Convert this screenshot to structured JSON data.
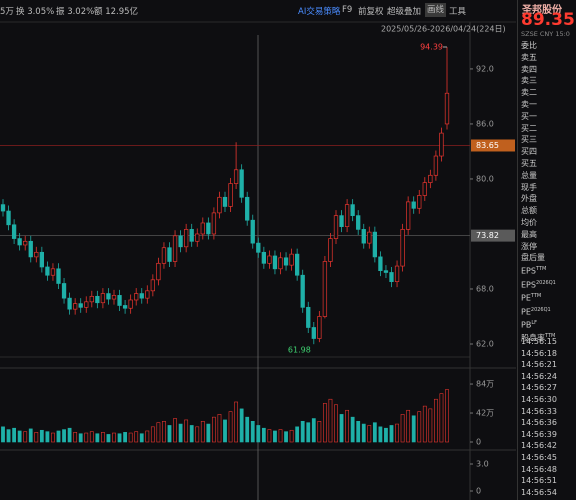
{
  "top_bar": {
    "volume": "5万",
    "turnover": "换 3.05%",
    "amplitude": "振 3.02%",
    "amount": "额 12.95亿",
    "menu": [
      "AI交易策略",
      "F9",
      "前复权",
      "超级叠加",
      "画线",
      "工具"
    ]
  },
  "chart_data": {
    "type": "candlestick",
    "date_range": "2025/05/26-2026/04/24(224日)",
    "open": [
      77.2,
      76.5,
      75.0,
      73.5,
      72.8,
      73.2,
      71.5,
      72.0,
      70.4,
      69.5,
      70.2,
      68.6,
      67.0,
      65.8,
      66.4,
      66.0,
      66.6,
      67.2,
      66.5,
      67.5,
      66.9,
      67.3,
      66.2,
      65.9,
      66.8,
      67.5,
      67.0,
      67.8,
      69.0,
      70.8,
      72.5,
      71.0,
      73.8,
      72.6,
      74.5,
      73.2,
      74.0,
      75.2,
      74.0,
      76.3,
      78.0,
      77.0,
      79.5,
      81.0,
      78.0,
      75.5,
      73.0,
      72.0,
      70.8,
      71.6,
      70.2,
      71.4,
      70.6,
      71.8,
      69.5,
      66.0,
      63.8,
      62.6,
      65.0,
      71.0,
      73.5,
      76.0,
      74.8,
      77.2,
      76.0,
      74.5,
      73.0,
      74.2,
      71.5,
      70.0,
      69.8,
      68.8,
      70.5,
      74.5,
      77.5,
      76.8,
      78.2,
      79.6,
      80.4,
      82.5,
      86.0
    ],
    "high": [
      77.8,
      77.1,
      75.6,
      74.1,
      73.8,
      73.8,
      72.6,
      72.6,
      71.0,
      70.8,
      70.8,
      69.2,
      67.6,
      67.0,
      67.0,
      67.2,
      67.8,
      67.8,
      68.1,
      68.1,
      67.9,
      67.9,
      66.8,
      67.4,
      68.1,
      68.1,
      68.4,
      69.6,
      71.4,
      73.1,
      73.1,
      74.4,
      74.4,
      75.1,
      75.1,
      74.6,
      75.8,
      75.8,
      76.9,
      78.6,
      78.6,
      80.1,
      84.0,
      81.6,
      78.6,
      76.1,
      73.6,
      72.6,
      72.2,
      72.2,
      72.0,
      72.0,
      72.4,
      72.4,
      70.1,
      66.6,
      64.4,
      65.6,
      71.6,
      74.1,
      76.6,
      76.6,
      77.8,
      77.8,
      76.6,
      75.1,
      74.8,
      74.8,
      72.1,
      70.6,
      70.4,
      71.1,
      75.1,
      78.1,
      78.1,
      78.8,
      80.2,
      81.0,
      83.1,
      85.6,
      94.39
    ],
    "low": [
      75.9,
      74.4,
      72.9,
      72.2,
      72.2,
      70.9,
      70.9,
      69.8,
      68.9,
      68.9,
      68.0,
      66.4,
      65.2,
      65.2,
      65.4,
      65.4,
      66.0,
      65.9,
      65.9,
      66.3,
      66.3,
      65.6,
      65.3,
      65.3,
      66.2,
      66.4,
      66.4,
      67.2,
      68.4,
      70.2,
      70.4,
      70.4,
      72.0,
      72.0,
      72.6,
      72.6,
      73.4,
      73.4,
      73.4,
      75.7,
      76.4,
      76.4,
      78.9,
      77.4,
      74.9,
      72.4,
      71.4,
      70.2,
      70.2,
      69.6,
      69.6,
      70.0,
      70.0,
      68.9,
      65.4,
      63.2,
      61.98,
      62.2,
      64.8,
      70.4,
      72.9,
      74.2,
      74.2,
      75.4,
      73.9,
      72.4,
      72.4,
      70.9,
      69.4,
      69.2,
      68.2,
      68.2,
      69.9,
      73.9,
      76.2,
      76.2,
      77.6,
      79.0,
      79.8,
      81.9,
      85.4
    ],
    "close": [
      76.5,
      75.0,
      73.5,
      72.8,
      73.2,
      71.5,
      72.0,
      70.4,
      69.5,
      70.2,
      68.6,
      67.0,
      65.8,
      66.4,
      66.0,
      66.6,
      67.2,
      66.5,
      67.5,
      66.9,
      67.3,
      66.2,
      65.9,
      66.8,
      67.5,
      67.0,
      67.8,
      69.0,
      70.8,
      72.5,
      71.0,
      73.8,
      72.6,
      74.5,
      73.2,
      74.0,
      75.2,
      74.0,
      76.3,
      78.0,
      77.0,
      79.5,
      81.0,
      78.0,
      75.5,
      73.0,
      72.0,
      70.8,
      71.6,
      70.2,
      71.4,
      70.6,
      71.8,
      69.5,
      66.0,
      63.8,
      62.6,
      65.0,
      71.0,
      73.5,
      76.0,
      74.8,
      77.2,
      76.0,
      74.5,
      73.0,
      74.2,
      71.5,
      70.0,
      69.8,
      68.8,
      70.5,
      74.5,
      77.5,
      76.8,
      78.2,
      79.6,
      80.4,
      82.5,
      85.0,
      89.35
    ],
    "up_color": "#e8352e",
    "down_color": "#1fb0a8",
    "ylim": [
      60.8,
      95.7
    ],
    "yticks": [
      {
        "value": 92,
        "label": "92.0"
      },
      {
        "value": 86,
        "label": "86.0"
      },
      {
        "value": 80,
        "label": "80.0"
      },
      {
        "value": 68,
        "label": "68.0"
      },
      {
        "value": 62,
        "label": "62.0"
      }
    ],
    "reference_lines": [
      {
        "value": 83.65,
        "color": "#c0601e"
      },
      {
        "value": 73.82,
        "color": "#5a5a5a"
      }
    ],
    "volume": [
      22,
      18,
      20,
      16,
      15,
      19,
      14,
      17,
      15,
      13,
      16,
      18,
      20,
      14,
      12,
      13,
      15,
      12,
      14,
      11,
      13,
      12,
      14,
      13,
      15,
      12,
      16,
      22,
      28,
      30,
      24,
      34,
      26,
      32,
      24,
      22,
      30,
      26,
      36,
      40,
      32,
      44,
      58,
      48,
      36,
      30,
      24,
      20,
      18,
      16,
      18,
      15,
      17,
      22,
      30,
      28,
      34,
      30,
      56,
      62,
      54,
      40,
      46,
      36,
      30,
      26,
      24,
      28,
      22,
      20,
      24,
      26,
      40,
      46,
      38,
      44,
      52,
      48,
      62,
      70,
      76
    ],
    "volume_ylim": [
      0,
      100
    ],
    "volume_ticks": [
      {
        "value": 84,
        "label": "84万"
      },
      {
        "value": 42,
        "label": "42万"
      },
      0
    ],
    "indicator_ylim": [
      -1,
      4
    ],
    "indicator_ticks": [
      {
        "value": 3,
        "label": "3.0"
      },
      0
    ]
  },
  "quote": {
    "name": "圣邦股份",
    "price": "89.35",
    "info": "SZSE CNY 15:0",
    "rows": [
      "委比",
      "卖五",
      "卖四",
      "卖三",
      "卖二",
      "卖一",
      "买一",
      "买二",
      "买三",
      "买四",
      "买五",
      "总量",
      "现手",
      "外盘",
      "总额",
      "均价",
      "最高",
      "涨停",
      "盘后量",
      {
        "label": "EPS",
        "sup": "TTM"
      },
      {
        "label": "EPS",
        "sup": "2026Q1"
      },
      {
        "label": "PE",
        "sup": "TTM"
      },
      {
        "label": "PE",
        "sup": "2026Q1"
      },
      {
        "label": "PB",
        "sup": "LF"
      },
      {
        "label": "股息率",
        "sup": "TTM"
      }
    ],
    "times": [
      "14:56:15",
      "14:56:18",
      "14:56:21",
      "14:56:24",
      "14:56:27",
      "14:56:30",
      "14:56:33",
      "14:56:36",
      "14:56:39",
      "14:56:42",
      "14:56:45",
      "14:56:48",
      "14:56:51",
      "14:56:54"
    ]
  }
}
